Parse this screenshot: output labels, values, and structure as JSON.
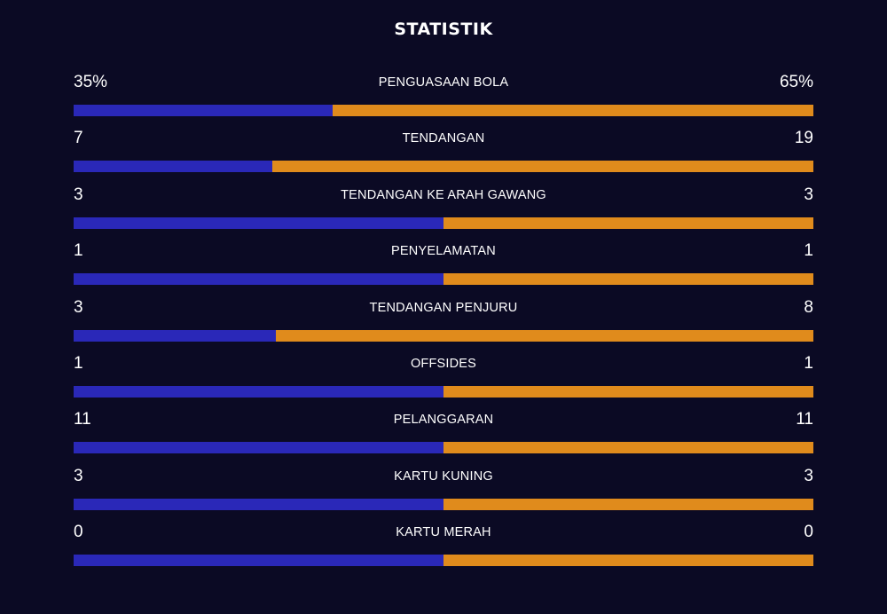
{
  "title": "STATISTIK",
  "colors": {
    "background": "#0b0a24",
    "home_bar": "#2a28b8",
    "away_bar": "#e08b1c"
  },
  "stats": [
    {
      "label": "PENGUASAAN BOLA",
      "home": "35%",
      "away": "65%",
      "home_share": 0.35
    },
    {
      "label": "TENDANGAN",
      "home": "7",
      "away": "19",
      "home_share": 0.269
    },
    {
      "label": "TENDANGAN KE ARAH GAWANG",
      "home": "3",
      "away": "3",
      "home_share": 0.5
    },
    {
      "label": "PENYELAMATAN",
      "home": "1",
      "away": "1",
      "home_share": 0.5
    },
    {
      "label": "TENDANGAN PENJURU",
      "home": "3",
      "away": "8",
      "home_share": 0.273
    },
    {
      "label": "OFFSIDES",
      "home": "1",
      "away": "1",
      "home_share": 0.5
    },
    {
      "label": "PELANGGARAN",
      "home": "11",
      "away": "11",
      "home_share": 0.5
    },
    {
      "label": "KARTU KUNING",
      "home": "3",
      "away": "3",
      "home_share": 0.5
    },
    {
      "label": "KARTU MERAH",
      "home": "0",
      "away": "0",
      "home_share": 0.5
    }
  ]
}
